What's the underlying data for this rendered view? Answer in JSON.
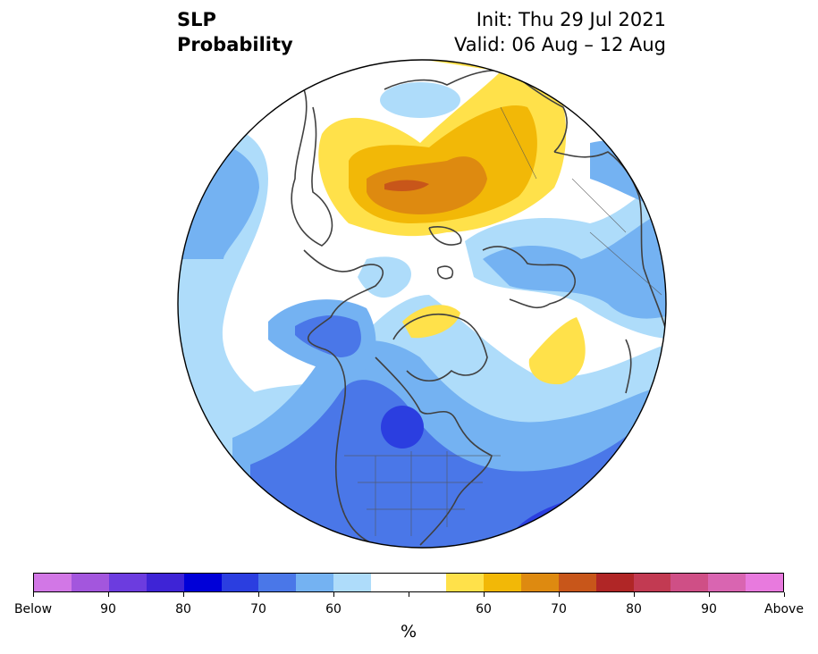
{
  "header": {
    "variable": "SLP",
    "product": "Probability",
    "init": "Init: Thu 29 Jul 2021",
    "valid": "Valid: 06 Aug – 12 Aug"
  },
  "map": {
    "projection": "north-polar-stereographic",
    "region": "Northern Hemisphere (North America, Arctic, Eurasia)",
    "colors": {
      "below_60": "#aedcfa",
      "below_70": "#74b2f2",
      "below_80": "#4a77e8",
      "below_90": "#2b3ee0",
      "above_60": "#ffe14a",
      "above_70": "#f2b807",
      "above_80": "#de8a10",
      "above_90": "#c8561a",
      "above_max": "#c83226",
      "neutral": "#ffffff"
    }
  },
  "colorbar": {
    "colors": [
      "#d277e6",
      "#a356dd",
      "#6c3cdf",
      "#3e24d6",
      "#0000d8",
      "#2b3ee0",
      "#4a77e8",
      "#74b2f2",
      "#aedcfa",
      "#ffffff",
      "#ffffff",
      "#ffe14a",
      "#f2b807",
      "#de8a10",
      "#c8561a",
      "#b02626",
      "#c23a52",
      "#cf4f86",
      "#d965b1",
      "#e87ade"
    ],
    "tick_labels": [
      "Below",
      "90",
      "80",
      "70",
      "60",
      "60",
      "70",
      "80",
      "90",
      "Above"
    ],
    "unit": "%"
  }
}
